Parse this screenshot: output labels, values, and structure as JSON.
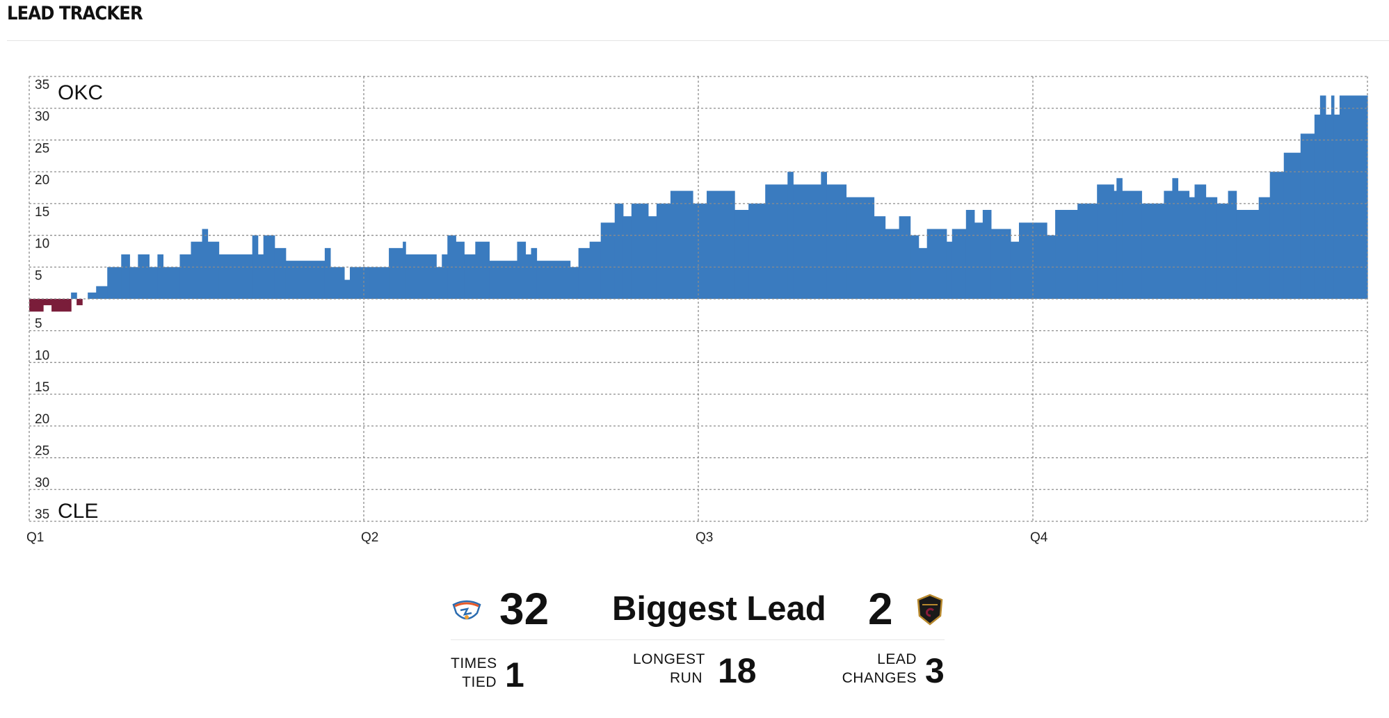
{
  "header": {
    "title": "LEAD TRACKER"
  },
  "colors": {
    "home_lead": "#3a7bbf",
    "away_lead": "#7a1d3a",
    "grid": "#8c8c8c"
  },
  "chart_data": {
    "type": "area",
    "team_top": "OKC",
    "team_bottom": "CLE",
    "x_ticks": [
      "Q1",
      "Q2",
      "Q3",
      "Q4"
    ],
    "x_range": [
      0,
      48
    ],
    "y_range": [
      -35,
      35
    ],
    "y_ticks": [
      35,
      30,
      25,
      20,
      15,
      10,
      5,
      0,
      -5,
      -10,
      -15,
      -20,
      -25,
      -30,
      -35
    ],
    "grid": true,
    "x_unit": "minutes elapsed",
    "lead": [
      [
        0,
        -2
      ],
      [
        0.5,
        -1
      ],
      [
        0.8,
        -2
      ],
      [
        1.5,
        1
      ],
      [
        1.7,
        -1
      ],
      [
        1.9,
        0
      ],
      [
        2.1,
        1
      ],
      [
        2.4,
        2
      ],
      [
        2.8,
        5
      ],
      [
        3.3,
        7
      ],
      [
        3.6,
        5
      ],
      [
        3.9,
        7
      ],
      [
        4.3,
        5
      ],
      [
        4.6,
        7
      ],
      [
        4.8,
        5
      ],
      [
        5.4,
        7
      ],
      [
        5.8,
        9
      ],
      [
        6.2,
        11
      ],
      [
        6.4,
        9
      ],
      [
        6.8,
        7
      ],
      [
        8.0,
        10
      ],
      [
        8.2,
        7
      ],
      [
        8.4,
        10
      ],
      [
        8.8,
        8
      ],
      [
        9.2,
        6
      ],
      [
        10.6,
        8
      ],
      [
        10.8,
        5
      ],
      [
        11.3,
        3
      ],
      [
        11.5,
        5
      ],
      [
        12.2,
        5
      ],
      [
        12.9,
        8
      ],
      [
        13.4,
        9
      ],
      [
        13.5,
        7
      ],
      [
        14.6,
        5
      ],
      [
        14.8,
        7
      ],
      [
        15.0,
        10
      ],
      [
        15.3,
        9
      ],
      [
        15.6,
        7
      ],
      [
        16.0,
        9
      ],
      [
        16.5,
        6
      ],
      [
        17.5,
        9
      ],
      [
        17.8,
        7
      ],
      [
        18.0,
        8
      ],
      [
        18.2,
        6
      ],
      [
        19.4,
        5
      ],
      [
        19.7,
        8
      ],
      [
        20.1,
        9
      ],
      [
        20.5,
        12
      ],
      [
        21.0,
        15
      ],
      [
        21.3,
        13
      ],
      [
        21.6,
        15
      ],
      [
        22.2,
        13
      ],
      [
        22.5,
        15
      ],
      [
        23.0,
        17
      ],
      [
        23.8,
        15
      ],
      [
        24.3,
        17
      ],
      [
        25.3,
        14
      ],
      [
        25.8,
        15
      ],
      [
        26.4,
        18
      ],
      [
        27.2,
        20
      ],
      [
        27.4,
        18
      ],
      [
        28.4,
        20
      ],
      [
        28.6,
        18
      ],
      [
        29.3,
        16
      ],
      [
        30.3,
        13
      ],
      [
        30.7,
        11
      ],
      [
        31.2,
        13
      ],
      [
        31.6,
        10
      ],
      [
        31.9,
        8
      ],
      [
        32.2,
        11
      ],
      [
        32.9,
        9
      ],
      [
        33.1,
        11
      ],
      [
        33.6,
        14
      ],
      [
        33.9,
        12
      ],
      [
        34.2,
        14
      ],
      [
        34.5,
        11
      ],
      [
        35.2,
        9
      ],
      [
        35.5,
        12
      ],
      [
        36.1,
        12
      ],
      [
        36.5,
        10
      ],
      [
        36.8,
        14
      ],
      [
        37.6,
        15
      ],
      [
        38.3,
        18
      ],
      [
        38.9,
        17
      ],
      [
        39.0,
        19
      ],
      [
        39.2,
        17
      ],
      [
        39.9,
        15
      ],
      [
        40.7,
        17
      ],
      [
        41.0,
        19
      ],
      [
        41.2,
        17
      ],
      [
        41.6,
        16
      ],
      [
        41.8,
        18
      ],
      [
        42.2,
        16
      ],
      [
        42.6,
        15
      ],
      [
        43.0,
        17
      ],
      [
        43.3,
        14
      ],
      [
        44.1,
        16
      ],
      [
        44.5,
        20
      ],
      [
        45.0,
        23
      ],
      [
        45.6,
        26
      ],
      [
        46.1,
        29
      ],
      [
        46.3,
        32
      ],
      [
        46.5,
        29
      ],
      [
        46.7,
        32
      ],
      [
        46.8,
        29
      ],
      [
        47.0,
        32
      ],
      [
        48,
        32
      ]
    ]
  },
  "stats": {
    "biggest_lead": {
      "label": "Biggest Lead",
      "home": "32",
      "away": "2"
    },
    "times_tied": {
      "label_line1": "TIMES",
      "label_line2": "TIED",
      "value": "1"
    },
    "longest_run": {
      "label_line1": "LONGEST",
      "label_line2": "RUN",
      "value": "18"
    },
    "lead_changes": {
      "label_line1": "LEAD",
      "label_line2": "CHANGES",
      "value": "3"
    }
  },
  "logos": {
    "home": "thunder-logo",
    "away": "cavaliers-logo"
  }
}
